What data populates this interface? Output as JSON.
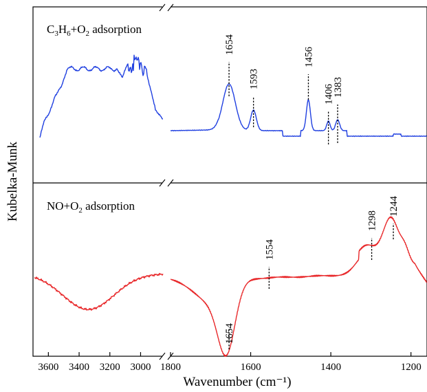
{
  "chart_data": {
    "type": "line",
    "title": "",
    "xlabel": "Wavenumber (cm⁻¹)",
    "ylabel": "Kubelka-Munk",
    "colors": {
      "top": "#1f3fe0",
      "bottom": "#e8282a"
    },
    "xaxis_left": {
      "range": [
        3700,
        2850
      ],
      "ticks": [
        "3600",
        "3400",
        "3200",
        "3000"
      ],
      "tick_values": [
        3600,
        3400,
        3200,
        3000
      ]
    },
    "xaxis_right": {
      "range": [
        1800,
        1160
      ],
      "ticks": [
        "1800",
        "1600",
        "1400",
        "1200"
      ],
      "tick_values": [
        1800,
        1600,
        1400,
        1200
      ]
    },
    "panels": [
      {
        "label_parts": {
          "c": "C",
          "n3": "3",
          "h": "H",
          "n6": "6",
          "plus_o": "+O",
          "n2": "2",
          "suffix": " adsorption"
        },
        "annotations": [
          {
            "label": "1654",
            "x": 1654
          },
          {
            "label": "1593",
            "x": 1593
          },
          {
            "label": "1456",
            "x": 1456
          },
          {
            "label": "1406",
            "x": 1406
          },
          {
            "label": "1383",
            "x": 1383
          }
        ]
      },
      {
        "label_parts": {
          "no": "NO+O",
          "n2": "2",
          "suffix": " adsorption"
        },
        "annotations": [
          {
            "label": "1654",
            "x": 1654
          },
          {
            "label": "1554",
            "x": 1554
          },
          {
            "label": "1298",
            "x": 1298
          },
          {
            "label": "1244",
            "x": 1244
          }
        ]
      }
    ]
  }
}
